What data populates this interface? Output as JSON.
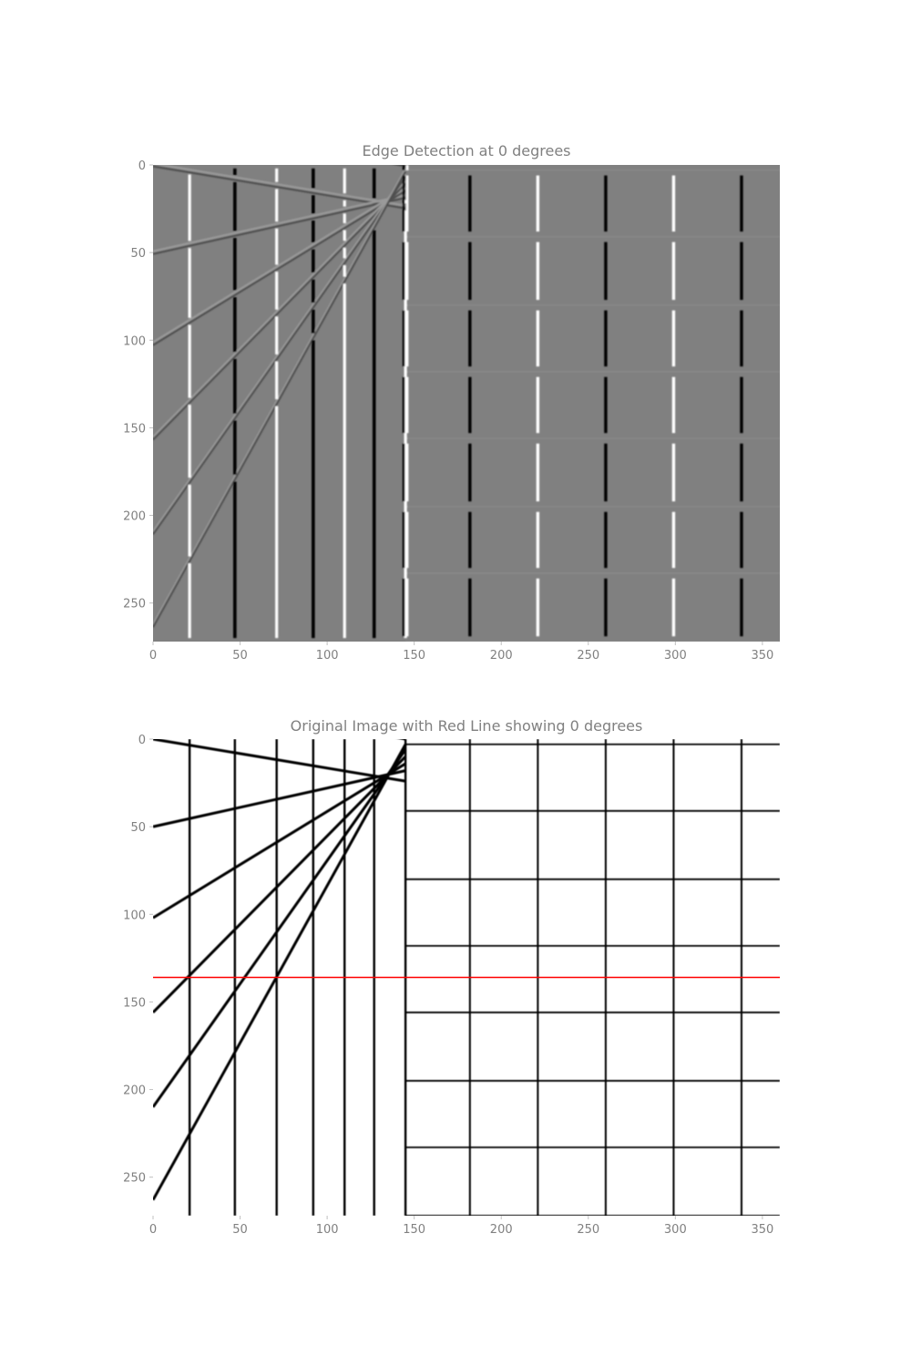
{
  "chart_data": [
    {
      "type": "heatmap",
      "title": "Edge Detection at 0 degrees",
      "image": "edge-response",
      "colors": {
        "background": "#808080",
        "positive": "#ffffff",
        "negative": "#000000"
      },
      "xlim": [
        0,
        360
      ],
      "ylim": [
        272,
        0
      ],
      "xticks": [
        0,
        50,
        100,
        150,
        200,
        250,
        300,
        350
      ],
      "yticks": [
        0,
        50,
        100,
        150,
        200,
        250
      ],
      "xtick_labels": [
        "0",
        "50",
        "100",
        "150",
        "200",
        "250",
        "300",
        "350"
      ],
      "ytick_labels": [
        "0",
        "50",
        "100",
        "150",
        "200",
        "250"
      ],
      "grid": false
    },
    {
      "type": "heatmap",
      "title": "Original Image with Red Line showing 0 degrees",
      "image": "grid-original",
      "colors": {
        "background": "#ffffff",
        "lines": "#000000",
        "marker": "#ff0000"
      },
      "xlim": [
        0,
        360
      ],
      "ylim": [
        272,
        0
      ],
      "xticks": [
        0,
        50,
        100,
        150,
        200,
        250,
        300,
        350
      ],
      "yticks": [
        0,
        50,
        100,
        150,
        200,
        250
      ],
      "xtick_labels": [
        "0",
        "50",
        "100",
        "150",
        "200",
        "250",
        "300",
        "350"
      ],
      "ytick_labels": [
        "0",
        "50",
        "100",
        "150",
        "200",
        "250"
      ],
      "red_line": {
        "angle_degrees": 0,
        "y": 136
      },
      "grid": false
    }
  ],
  "scene": {
    "left_vertical_x": [
      0,
      21,
      47,
      71,
      92,
      110,
      127,
      145
    ],
    "left_slope_lines": [
      [
        -30,
        0
      ],
      [
        0,
        24
      ],
      [
        50,
        18
      ],
      [
        102,
        14
      ],
      [
        156,
        10
      ],
      [
        210,
        6
      ],
      [
        263,
        3
      ]
    ],
    "right_vertical_x": [
      145,
      182,
      221,
      260,
      299,
      338
    ],
    "right_horizontal_y": [
      3,
      41,
      80,
      118,
      156,
      195,
      233,
      272
    ]
  }
}
